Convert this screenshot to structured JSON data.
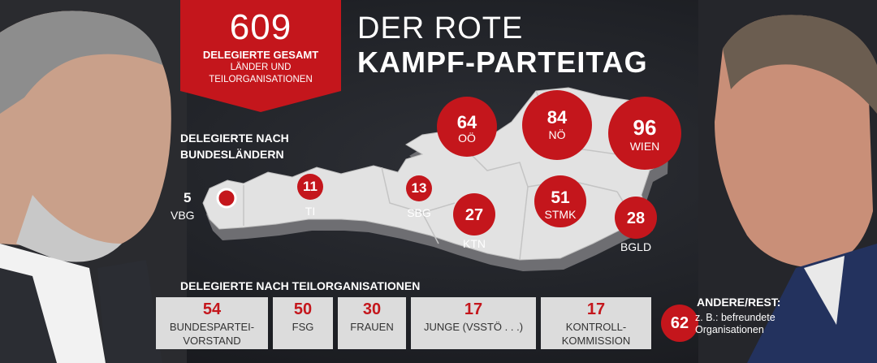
{
  "banner": {
    "number": "609",
    "line1": "DELEGIERTE GESAMT",
    "line2a": "LÄNDER UND",
    "line2b": "TEILORGANISATIONEN"
  },
  "title": {
    "line1": "DER ROTE",
    "line2": "KAMPF-PARTEITAG"
  },
  "section_states": {
    "line1": "DELEGIERTE NACH",
    "line2": "BUNDESLÄNDERN"
  },
  "states": {
    "vbg": {
      "value": "5",
      "label": "VBG"
    },
    "ti": {
      "value": "11",
      "label": "TI"
    },
    "sbg": {
      "value": "13",
      "label": "SBG"
    },
    "ktn": {
      "value": "27",
      "label": "KTN"
    },
    "stmk": {
      "value": "51",
      "label": "STMK"
    },
    "bgld": {
      "value": "28",
      "label": "BGLD"
    },
    "ooe": {
      "value": "64",
      "label": "OÖ"
    },
    "noe": {
      "value": "84",
      "label": "NÖ"
    },
    "wien": {
      "value": "96",
      "label": "WIEN"
    }
  },
  "section_orgs": "DELEGIERTE NACH TEILORGANISATIONEN",
  "orgs": [
    {
      "value": "54",
      "label1": "BUNDESPARTEI-",
      "label2": "VORSTAND"
    },
    {
      "value": "50",
      "label1": "FSG",
      "label2": ""
    },
    {
      "value": "30",
      "label1": "FRAUEN",
      "label2": ""
    },
    {
      "value": "17",
      "label1": "JUNGE (VSSTÖ . . .)",
      "label2": ""
    },
    {
      "value": "17",
      "label1": "KONTROLL-",
      "label2": "KOMMISSION"
    }
  ],
  "rest": {
    "title": "ANDERE/REST:",
    "value": "62",
    "line1": "z. B.: befreundete",
    "line2": "Organisationen"
  },
  "colors": {
    "red": "#c4161c",
    "map": "#e2e2e2",
    "box": "#dcdcdc"
  }
}
